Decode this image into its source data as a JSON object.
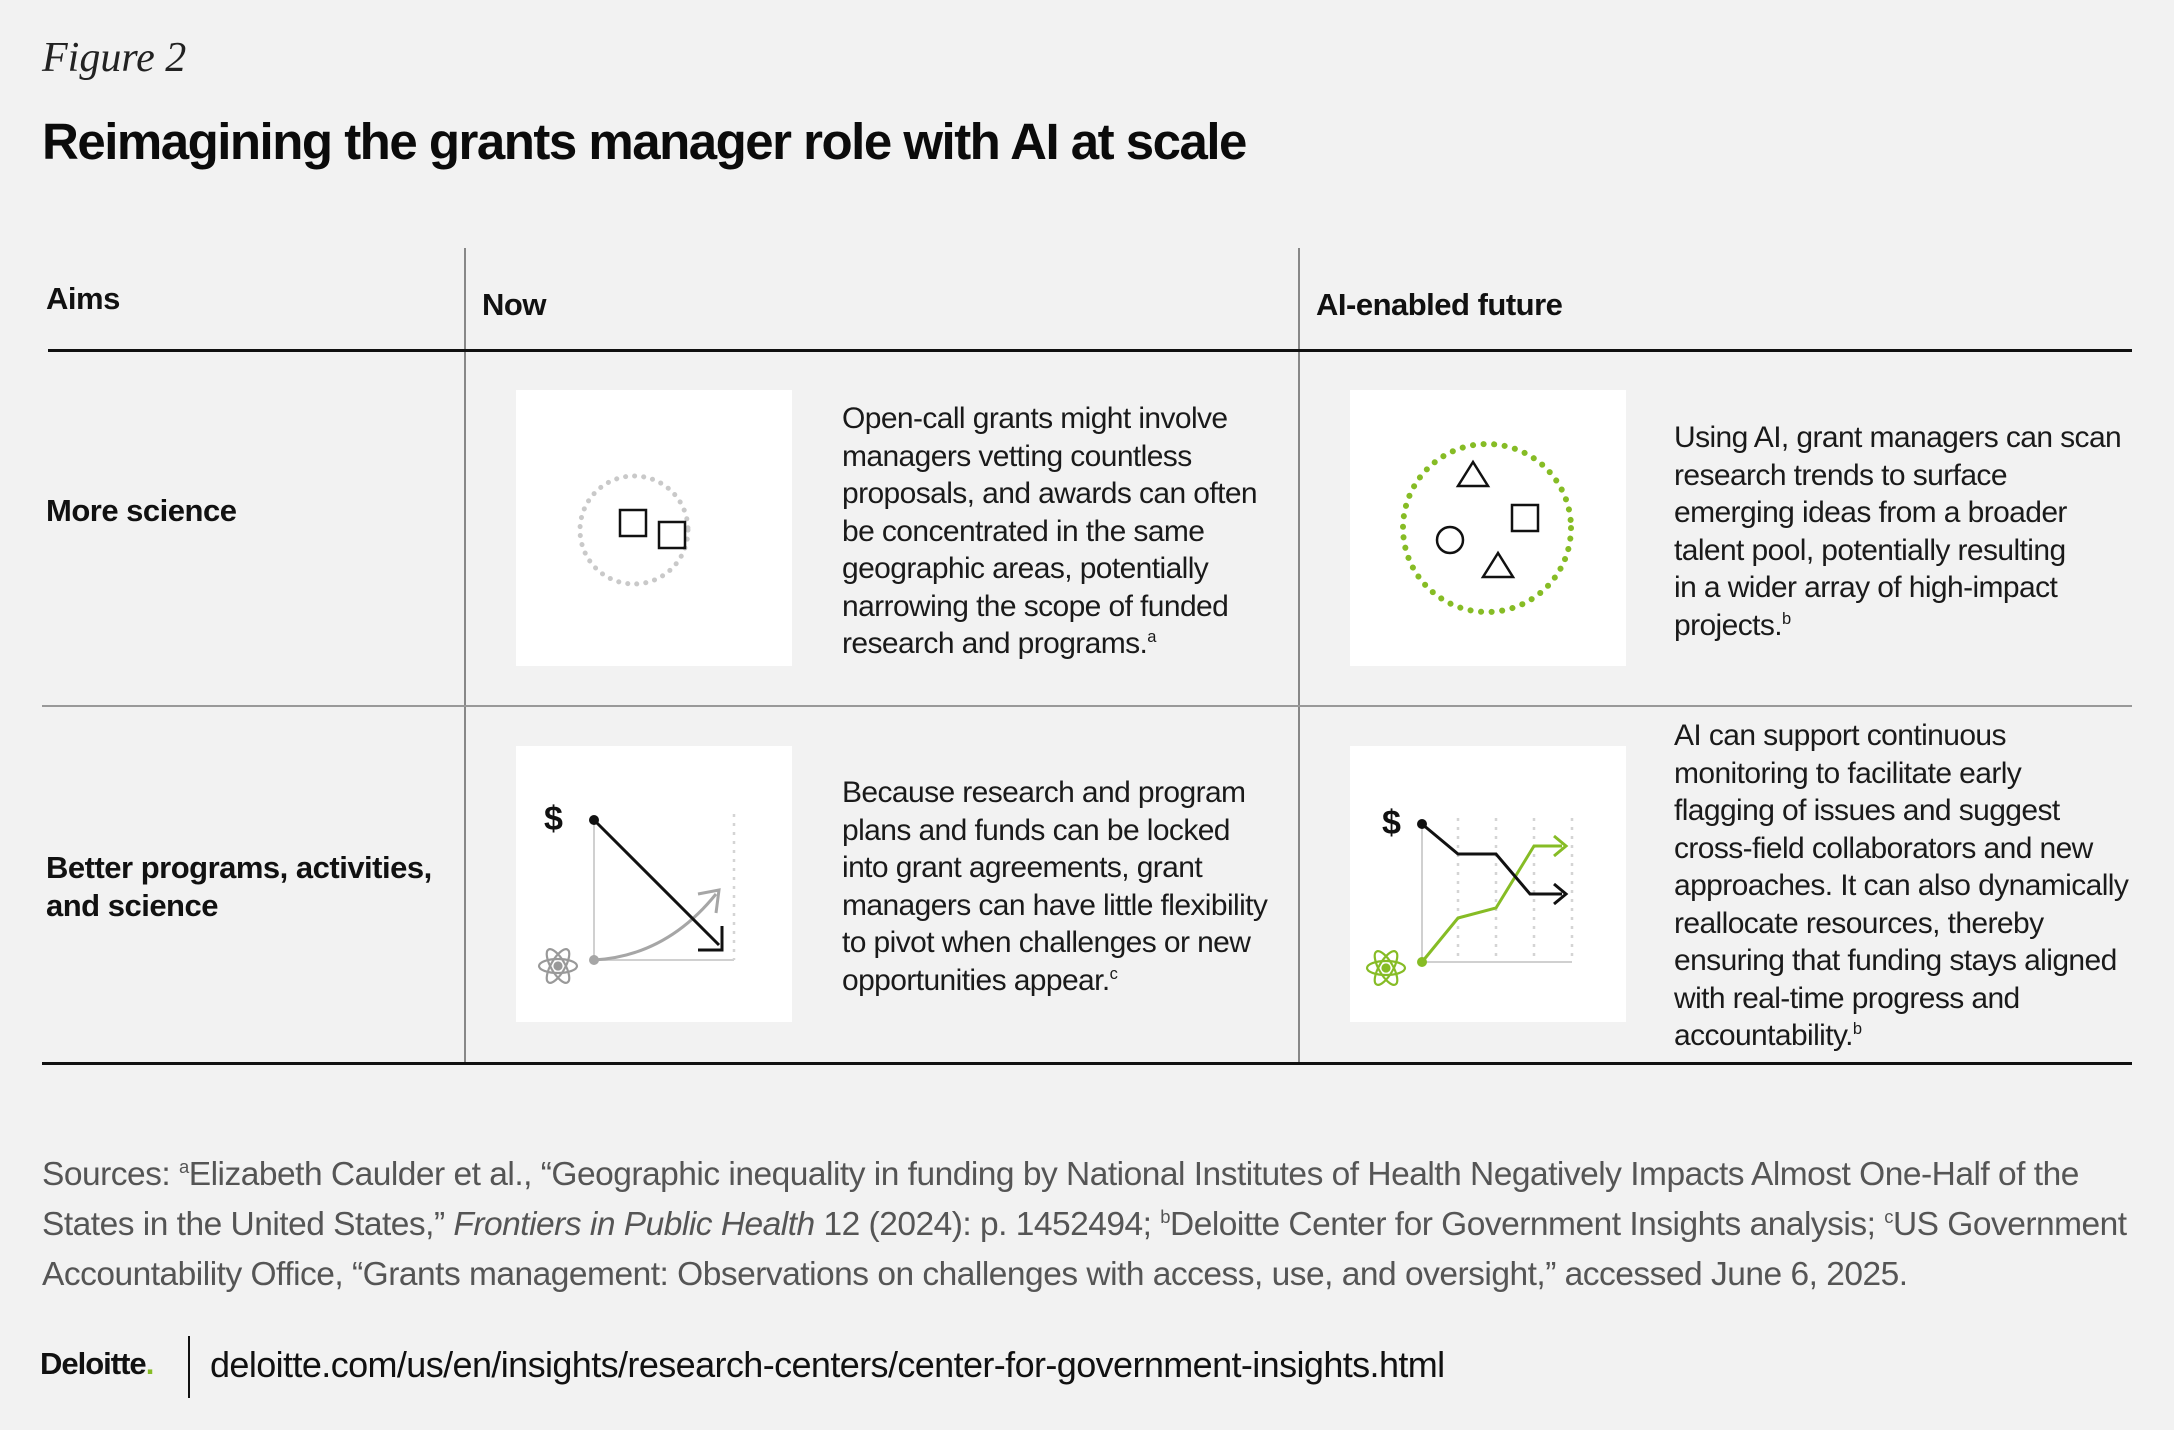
{
  "figure_label": "Figure 2",
  "title": "Reimagining the grants manager role with AI at scale",
  "columns": {
    "aims": "Aims",
    "now": "Now",
    "future": "AI-enabled future"
  },
  "rows": [
    {
      "aim": "More science",
      "now_text": "Open-call grants might involve\nmanagers vetting countless\nproposals, and awards can often\nbe concentrated in the same\ngeographic areas, potentially\nnarrowing the scope of funded\nresearch and programs.",
      "now_note": "a",
      "future_text": "Using AI, grant managers can scan\nresearch trends to surface\nemerging ideas from a broader\ntalent pool, potentially resulting\nin a wider array of high-impact\nprojects.",
      "future_note": "b"
    },
    {
      "aim": "Better programs, activities,\nand science",
      "now_text": "Because research and program\nplans and funds can be locked\ninto grant agreements, grant\nmanagers can have little flexibility\nto pivot when challenges or new\nopportunities appear.",
      "now_note": "c",
      "future_text": "AI can support continuous\nmonitoring to facilitate early\nflagging of issues and suggest\ncross-field collaborators and new\napproaches. It can also dynamically\nreallocate resources, thereby\nensuring that funding stays aligned\nwith real-time progress and\naccountability.",
      "future_note": "b"
    }
  ],
  "icons": {
    "dollar": "$"
  },
  "sources": {
    "lead": "Sources: ",
    "note_a": "a",
    "part1": "Elizabeth Caulder et al., “Geographic inequality in funding by National Institutes of Health Negatively Impacts Almost One-Half of the States in the United States,” ",
    "journal": "Frontiers in Public Health",
    "part2": " 12 (2024): p. 1452494; ",
    "note_b": "b",
    "part3": "Deloitte Center for Government Insights analysis; ",
    "note_c": "c",
    "part4": "US Government Accountability Office, “Grants management: Observations on challenges with access, use, and oversight,” accessed June 6, 2025."
  },
  "footer": {
    "logo": "Deloitte",
    "logo_dot": ".",
    "url": "deloitte.com/us/en/insights/research-centers/center-for-government-insights.html"
  },
  "colors": {
    "green": "#86bc25",
    "background": "#f2f2f2"
  }
}
